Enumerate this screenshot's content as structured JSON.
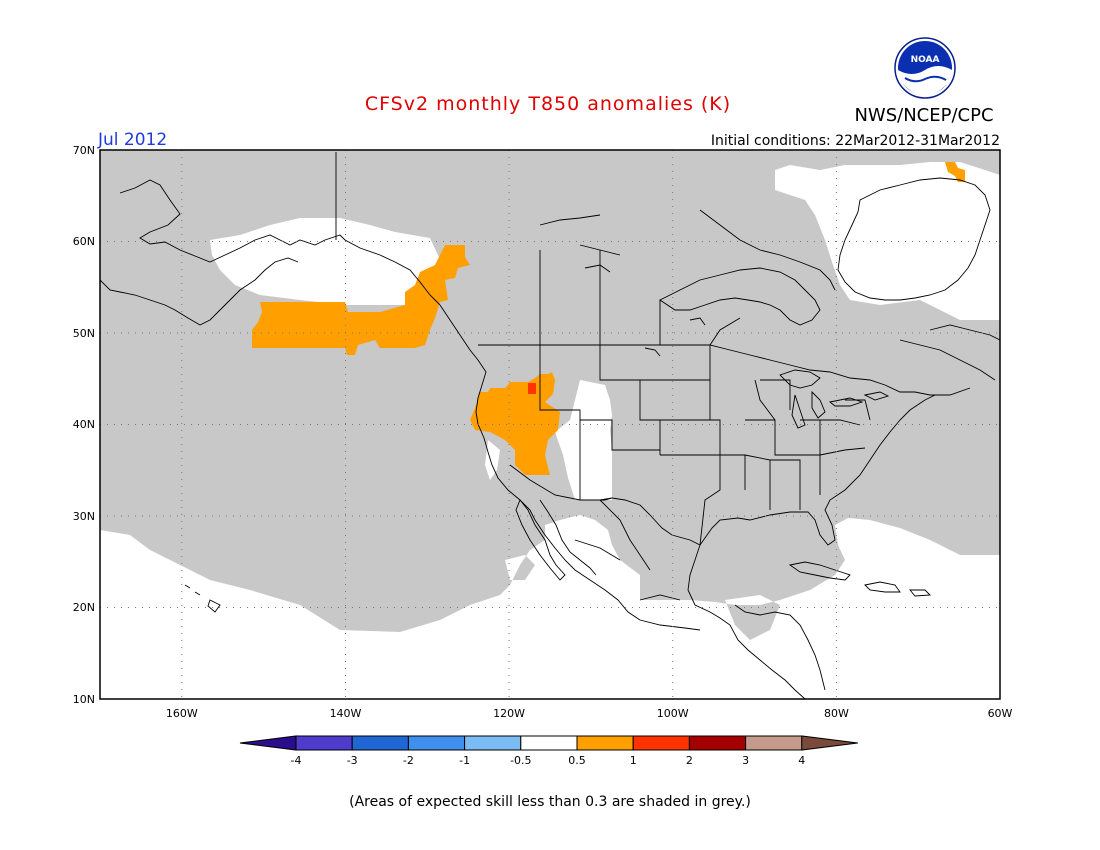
{
  "title": "CFSv2 monthly T850 anomalies (K)",
  "agency": "NWS/NCEP/CPC",
  "logo_text": "NOAA",
  "month": "Jul 2012",
  "initial_conditions": "Initial conditions: 22Mar2012-31Mar2012",
  "footnote": "(Areas of expected skill less than 0.3 are shaded in grey.)",
  "map": {
    "lon_range": [
      -170,
      -60
    ],
    "lat_range": [
      10,
      70
    ],
    "lat_labels": [
      "70N",
      "60N",
      "50N",
      "40N",
      "30N",
      "20N",
      "10N"
    ],
    "lon_labels": [
      "160W",
      "140W",
      "120W",
      "100W",
      "80W",
      "60W"
    ],
    "gridlines": "dotted"
  },
  "colorbar": {
    "tick_labels": [
      "-4",
      "-3",
      "-2",
      "-1",
      "-0.5",
      "0.5",
      "1",
      "2",
      "3",
      "4"
    ],
    "colors": [
      "#2a0d8c",
      "#4f3ccc",
      "#2167d3",
      "#3f8fec",
      "#7cbcf4",
      "#ffffff",
      "#ff9f00",
      "#ff3300",
      "#a50000",
      "#c49a8a",
      "#7a4a3a"
    ]
  },
  "colors": {
    "title": "#e00000",
    "month": "#1f3bdc",
    "low_skill_grey": "#c8c8c8",
    "anomaly_0p5_to_1": "#ff9f00",
    "anomaly_1_to_2": "#ff3300",
    "outline": "#000000"
  },
  "regions": [
    {
      "name": "low-skill-grey",
      "value": "skill < 0.3"
    },
    {
      "name": "anomaly-pacific-northeast",
      "value": "0.5 to 1"
    },
    {
      "name": "anomaly-great-basin",
      "value": "0.5 to 1"
    },
    {
      "name": "anomaly-great-basin-peak",
      "value": "1 to 2"
    },
    {
      "name": "anomaly-greenland",
      "value": "0.5 to 1"
    }
  ]
}
